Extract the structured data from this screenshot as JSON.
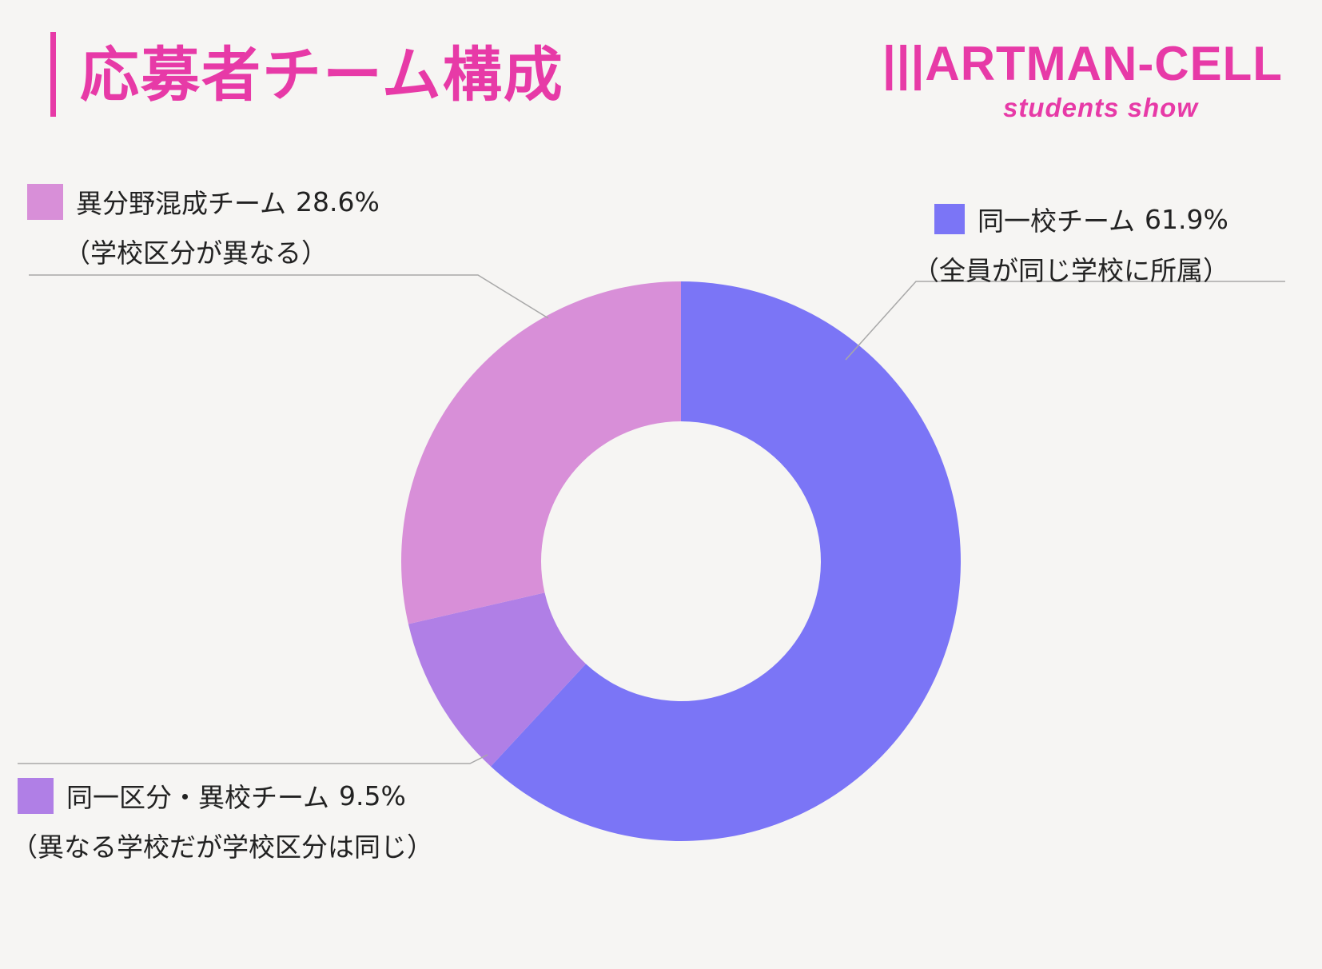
{
  "header": {
    "title": "応募者チーム構成"
  },
  "brand": {
    "name": "|||ARTMAN-CELL",
    "sub": "students show"
  },
  "colors": {
    "accent": "#e73aa7",
    "background": "#f6f5f3"
  },
  "chart_data": {
    "type": "pie",
    "style": "donut",
    "categories": [
      "同一校チーム",
      "同一区分・異校チーム",
      "異分野混成チーム"
    ],
    "values": [
      61.9,
      9.5,
      28.6
    ],
    "value_labels": [
      "61.9%",
      "9.5%",
      "28.6%"
    ],
    "notes": [
      "（全員が同じ学校に所属）",
      "（異なる学校だが学校区分は同じ）",
      "（学校区分が異なる）"
    ],
    "colors": [
      "#7b75f6",
      "#b07fe6",
      "#d88fd8"
    ]
  }
}
